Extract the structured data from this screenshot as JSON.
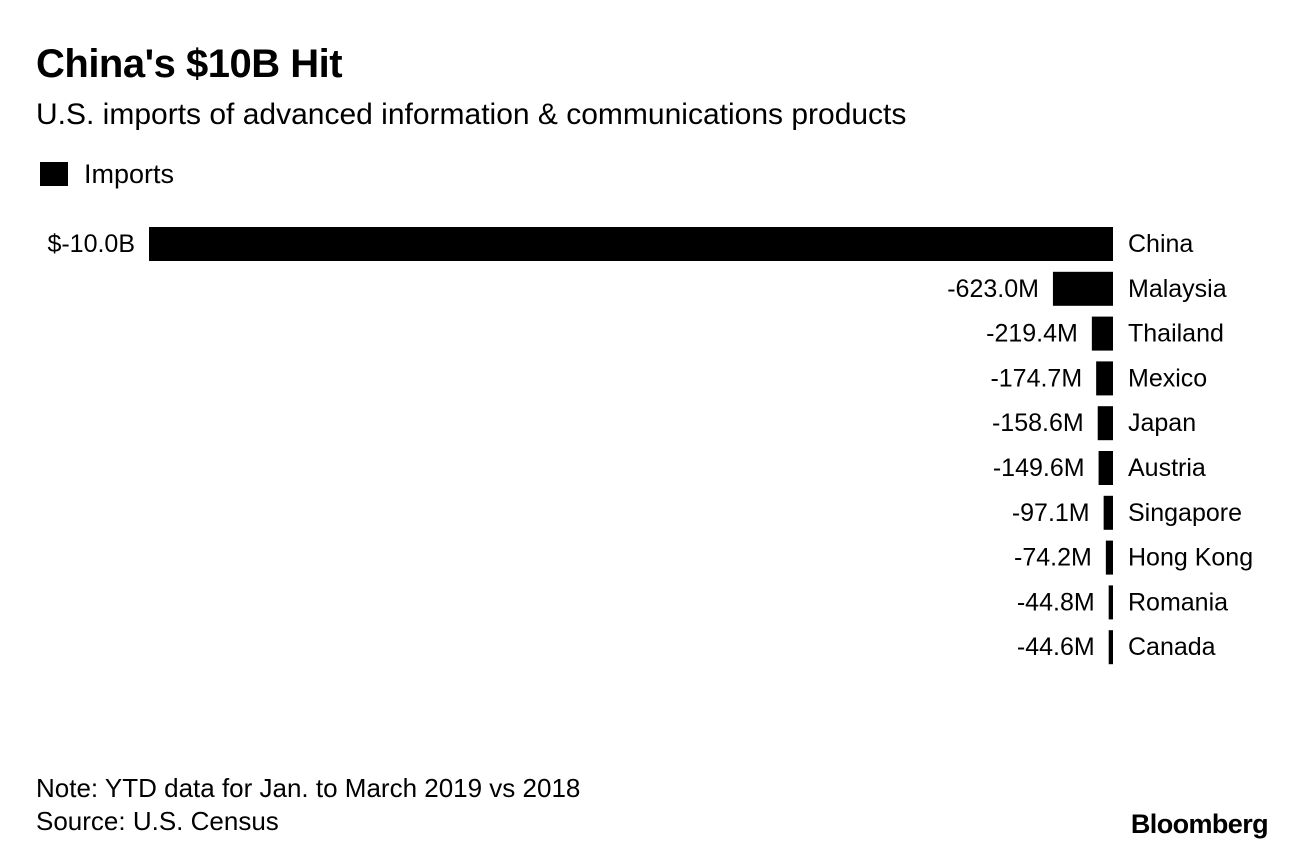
{
  "chart_data": {
    "type": "bar",
    "orientation": "horizontal",
    "title": "China's $10B Hit",
    "subtitle": "U.S. imports of advanced information & communications products",
    "legend": [
      "Imports"
    ],
    "categories": [
      "China",
      "Malaysia",
      "Thailand",
      "Mexico",
      "Japan",
      "Austria",
      "Singapore",
      "Hong Kong",
      "Romania",
      "Canada"
    ],
    "series": [
      {
        "name": "Imports",
        "values": [
          -10000,
          -623.0,
          -219.4,
          -174.7,
          -158.6,
          -149.6,
          -97.1,
          -74.2,
          -44.8,
          -44.6
        ],
        "labels": [
          "$-10.0B",
          "-623.0M",
          "-219.4M",
          "-174.7M",
          "-158.6M",
          "-149.6M",
          "-97.1M",
          "-74.2M",
          "-44.8M",
          "-44.6M"
        ]
      }
    ],
    "units": "USD millions",
    "xlim": [
      -10000,
      0
    ],
    "note": "Note: YTD data for Jan. to March 2019 vs 2018",
    "source": "Source: U.S. Census",
    "brand": "Bloomberg",
    "colors": {
      "bar": "#000000",
      "background": "#ffffff"
    }
  }
}
